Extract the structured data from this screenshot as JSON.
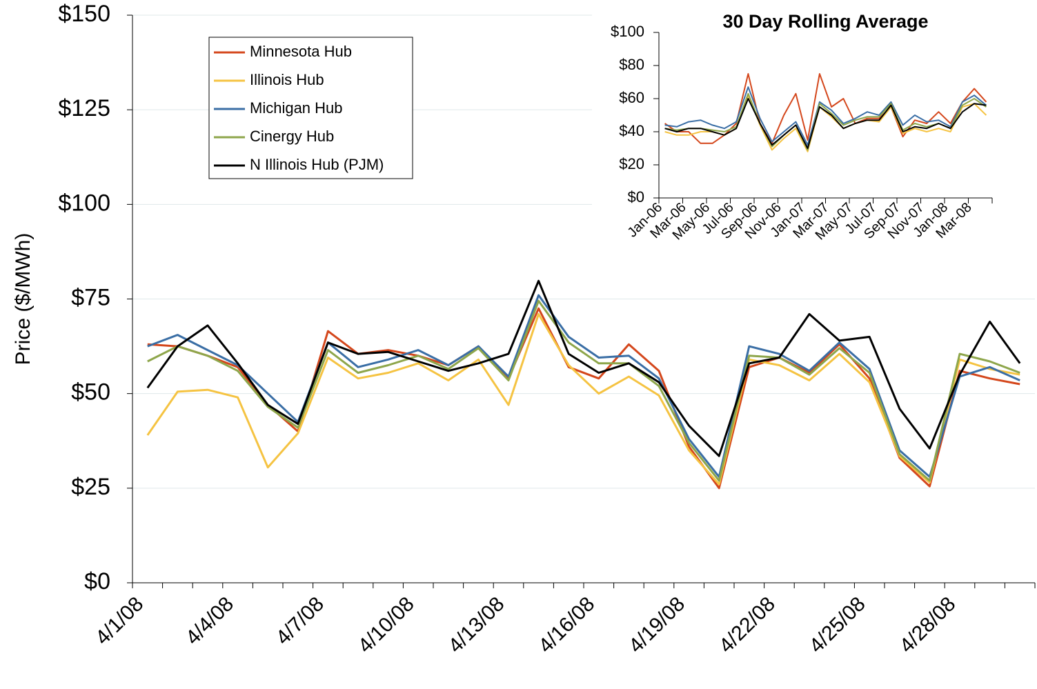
{
  "chart_data": [
    {
      "type": "line",
      "ylabel": "Price ($/MWh)",
      "categories": [
        "4/1/08",
        null,
        null,
        "4/4/08",
        null,
        null,
        "4/7/08",
        null,
        null,
        "4/10/08",
        null,
        null,
        "4/13/08",
        null,
        null,
        "4/16/08",
        null,
        null,
        "4/19/08",
        null,
        null,
        "4/22/08",
        null,
        null,
        "4/25/08",
        null,
        null,
        "4/28/08",
        null,
        null
      ],
      "ylim": [
        0,
        150
      ],
      "yticks": [
        {
          "value": 0,
          "label": "$0"
        },
        {
          "value": 25,
          "label": "$25"
        },
        {
          "value": 50,
          "label": "$50"
        },
        {
          "value": 75,
          "label": "$75"
        },
        {
          "value": 100,
          "label": "$100"
        },
        {
          "value": 125,
          "label": "$125"
        },
        {
          "value": 150,
          "label": "$150"
        }
      ],
      "grid": true,
      "legend": "upper left",
      "series": [
        {
          "name": "Minnesota Hub",
          "color": "#d4471c",
          "values": [
            63,
            62.5,
            60,
            57,
            47,
            40,
            66.5,
            60.5,
            61.5,
            60,
            57.5,
            62.5,
            54,
            72.5,
            57,
            54,
            63,
            56,
            36,
            25,
            57,
            59.5,
            55.5,
            63,
            54,
            33,
            25.5,
            56,
            54,
            52.5
          ]
        },
        {
          "name": "Illinois Hub",
          "color": "#f5c342",
          "values": [
            39,
            50.5,
            51,
            49,
            30.5,
            39.5,
            59.5,
            54,
            55.5,
            58,
            53.5,
            59,
            47,
            71,
            57.5,
            50,
            54.5,
            49.5,
            35,
            26,
            59,
            57.5,
            53.5,
            60.5,
            53,
            33.5,
            26.5,
            59,
            56.5,
            55
          ]
        },
        {
          "name": "Michigan Hub",
          "color": "#3a6ea5",
          "values": [
            62.5,
            65.5,
            61.5,
            57.5,
            50,
            42.5,
            63.5,
            57,
            59,
            61.5,
            57.5,
            62.5,
            54.5,
            76,
            65,
            59.5,
            60,
            54,
            38,
            28,
            62.5,
            60.5,
            56,
            63.5,
            56.5,
            35,
            28,
            54.5,
            57,
            53.5
          ]
        },
        {
          "name": "Cinergy Hub",
          "color": "#8ea64b",
          "values": [
            58.5,
            62.5,
            60,
            56,
            46.5,
            41,
            61.5,
            55.5,
            57.5,
            60,
            56.5,
            62,
            53.5,
            74.5,
            63.5,
            58,
            58,
            52,
            37,
            27,
            60,
            59.5,
            55,
            62,
            55.5,
            34,
            27,
            60.5,
            58.5,
            55.5
          ]
        },
        {
          "name": "N Illinois Hub (PJM)",
          "color": "#000000",
          "values": [
            51.5,
            62.5,
            68,
            58,
            47,
            42,
            63.5,
            60.5,
            61,
            58.5,
            56,
            58,
            60.5,
            79.8,
            60.5,
            55.5,
            58,
            53,
            41.5,
            33.5,
            58,
            59.5,
            71,
            64,
            65,
            46,
            35.5,
            55,
            69,
            58
          ]
        }
      ]
    },
    {
      "type": "line",
      "title": "30 Day Rolling Average",
      "categories": [
        "Jan-06",
        null,
        "Mar-06",
        null,
        "May-06",
        null,
        "Jul-06",
        null,
        "Sep-06",
        null,
        "Nov-06",
        null,
        "Jan-07",
        null,
        "Mar-07",
        null,
        "May-07",
        null,
        "Jul-07",
        null,
        "Sep-07",
        null,
        "Nov-07",
        null,
        "Jan-08",
        null,
        "Mar-08",
        null
      ],
      "ylim": [
        0,
        100
      ],
      "yticks": [
        {
          "value": 0,
          "label": "$0"
        },
        {
          "value": 20,
          "label": "$20"
        },
        {
          "value": 40,
          "label": "$40"
        },
        {
          "value": 60,
          "label": "$60"
        },
        {
          "value": 80,
          "label": "$80"
        },
        {
          "value": 100,
          "label": "$100"
        }
      ],
      "grid": false,
      "series": [
        {
          "color": "#d4471c",
          "values": [
            45,
            40,
            40,
            33,
            33,
            38,
            45,
            75,
            45,
            33,
            50,
            63,
            35,
            75,
            55,
            60,
            45,
            48,
            48,
            55,
            37,
            47,
            45,
            52,
            45,
            58,
            66,
            58
          ]
        },
        {
          "color": "#f5c342",
          "values": [
            40,
            38,
            38,
            40,
            40,
            38,
            42,
            62,
            44,
            29,
            36,
            42,
            28,
            55,
            49,
            42,
            45,
            47,
            46,
            55,
            39,
            42,
            40,
            42,
            40,
            55,
            57,
            50
          ]
        },
        {
          "color": "#3a6ea5",
          "values": [
            44,
            43,
            46,
            47,
            44,
            42,
            46,
            67,
            48,
            34,
            40,
            46,
            32,
            58,
            53,
            45,
            48,
            52,
            50,
            58,
            44,
            50,
            46,
            47,
            43,
            58,
            62,
            56
          ]
        },
        {
          "color": "#8ea64b",
          "values": [
            42,
            41,
            42,
            42,
            41,
            40,
            43,
            63,
            45,
            31,
            38,
            44,
            29,
            57,
            51,
            44,
            47,
            49,
            49,
            57,
            41,
            45,
            43,
            45,
            42,
            56,
            60,
            55
          ]
        },
        {
          "color": "#000000",
          "values": [
            42,
            40,
            42,
            42,
            40,
            38,
            42,
            60,
            45,
            32,
            38,
            44,
            30,
            55,
            50,
            42,
            45,
            47,
            47,
            56,
            40,
            43,
            42,
            45,
            42,
            52,
            57,
            56
          ]
        }
      ]
    }
  ]
}
